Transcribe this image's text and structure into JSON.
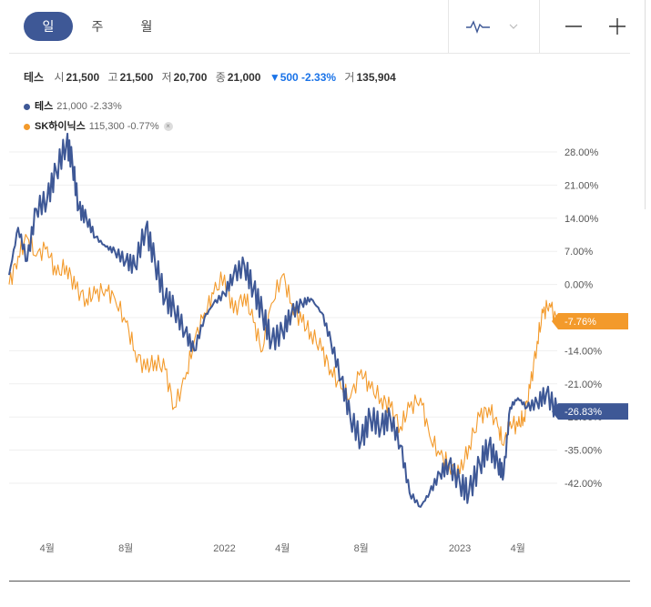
{
  "tabs": [
    {
      "label": "일",
      "active": true
    },
    {
      "label": "주",
      "active": false
    },
    {
      "label": "월",
      "active": false
    }
  ],
  "controls": {
    "chart_type_icon": "line-chart-icon",
    "dropdown_icon": "chevron-down-icon",
    "zoom_out_icon": "minus-icon",
    "zoom_in_icon": "plus-icon"
  },
  "quote": {
    "name": "테스",
    "open_label": "시",
    "open": "21,500",
    "high_label": "고",
    "high": "21,500",
    "low_label": "저",
    "low": "20,700",
    "close_label": "종",
    "close": "21,000",
    "change": "▼500 -2.33%",
    "volume_label": "거",
    "volume": "135,904"
  },
  "legend": [
    {
      "name": "테스",
      "value": "21,000 -2.33%",
      "color": "#3e5896"
    },
    {
      "name": "SK하이닉스",
      "value": "115,300 -0.77%",
      "color": "#f39a2b",
      "removable": true
    }
  ],
  "chart_data": {
    "type": "line",
    "y_unit": "%",
    "yticks": [
      "28.00%",
      "21.00%",
      "14.00%",
      "7.00%",
      "0.00%",
      "-7.00%",
      "-14.00%",
      "-21.00%",
      "-28.00%",
      "-35.00%",
      "-42.00%"
    ],
    "ylim": [
      -48,
      30
    ],
    "xticks": [
      "4월",
      "8월",
      "2022",
      "4월",
      "8월",
      "2023",
      "4월"
    ],
    "x_range": [
      "2021-02",
      "2023-06"
    ],
    "grid": true,
    "series": [
      {
        "name": "테스",
        "color": "#3e5896",
        "last_label": "-26.83%",
        "points": [
          [
            "2021-02-01",
            2
          ],
          [
            "2021-02-15",
            12
          ],
          [
            "2021-03-01",
            5
          ],
          [
            "2021-03-15",
            16
          ],
          [
            "2021-04-01",
            18
          ],
          [
            "2021-04-15",
            24
          ],
          [
            "2021-05-01",
            30
          ],
          [
            "2021-05-10",
            26
          ],
          [
            "2021-05-20",
            16
          ],
          [
            "2021-06-01",
            14
          ],
          [
            "2021-06-15",
            10
          ],
          [
            "2021-07-01",
            8
          ],
          [
            "2021-07-15",
            7
          ],
          [
            "2021-08-01",
            5
          ],
          [
            "2021-08-15",
            4
          ],
          [
            "2021-09-01",
            12
          ],
          [
            "2021-09-15",
            5
          ],
          [
            "2021-10-01",
            -3
          ],
          [
            "2021-10-15",
            -5
          ],
          [
            "2021-11-01",
            -10
          ],
          [
            "2021-11-15",
            -14
          ],
          [
            "2021-12-01",
            -7
          ],
          [
            "2021-12-15",
            -4
          ],
          [
            "2022-01-01",
            -2
          ],
          [
            "2022-01-15",
            2
          ],
          [
            "2022-02-01",
            4
          ],
          [
            "2022-02-15",
            -1
          ],
          [
            "2022-03-01",
            -6
          ],
          [
            "2022-03-15",
            -12
          ],
          [
            "2022-04-01",
            -10
          ],
          [
            "2022-04-15",
            -6
          ],
          [
            "2022-05-01",
            -4
          ],
          [
            "2022-05-15",
            -3
          ],
          [
            "2022-06-01",
            -6
          ],
          [
            "2022-06-15",
            -12
          ],
          [
            "2022-07-01",
            -20
          ],
          [
            "2022-07-15",
            -28
          ],
          [
            "2022-08-01",
            -33
          ],
          [
            "2022-08-15",
            -28
          ],
          [
            "2022-09-01",
            -30
          ],
          [
            "2022-09-15",
            -28
          ],
          [
            "2022-10-01",
            -34
          ],
          [
            "2022-10-15",
            -44
          ],
          [
            "2022-11-01",
            -47
          ],
          [
            "2022-11-15",
            -44
          ],
          [
            "2022-12-01",
            -40
          ],
          [
            "2022-12-15",
            -38
          ],
          [
            "2023-01-01",
            -42
          ],
          [
            "2023-01-15",
            -44
          ],
          [
            "2023-02-01",
            -38
          ],
          [
            "2023-02-15",
            -34
          ],
          [
            "2023-03-01",
            -38
          ],
          [
            "2023-03-10",
            -40
          ],
          [
            "2023-03-20",
            -26
          ],
          [
            "2023-04-01",
            -24
          ],
          [
            "2023-04-15",
            -26
          ],
          [
            "2023-05-01",
            -25
          ],
          [
            "2023-05-15",
            -23
          ],
          [
            "2023-06-01",
            -27
          ]
        ]
      },
      {
        "name": "SK하이닉스",
        "color": "#f39a2b",
        "last_label": "-7.76%",
        "points": [
          [
            "2021-02-01",
            0
          ],
          [
            "2021-02-15",
            6
          ],
          [
            "2021-03-01",
            10
          ],
          [
            "2021-03-15",
            6
          ],
          [
            "2021-04-01",
            8
          ],
          [
            "2021-04-15",
            2
          ],
          [
            "2021-05-01",
            4
          ],
          [
            "2021-05-15",
            -1
          ],
          [
            "2021-06-01",
            -3
          ],
          [
            "2021-06-15",
            -2
          ],
          [
            "2021-07-01",
            -1
          ],
          [
            "2021-07-15",
            -3
          ],
          [
            "2021-08-01",
            -8
          ],
          [
            "2021-08-15",
            -14
          ],
          [
            "2021-09-01",
            -18
          ],
          [
            "2021-09-15",
            -16
          ],
          [
            "2021-10-01",
            -18
          ],
          [
            "2021-10-15",
            -26
          ],
          [
            "2021-11-01",
            -20
          ],
          [
            "2021-11-15",
            -12
          ],
          [
            "2021-12-01",
            -6
          ],
          [
            "2021-12-15",
            -2
          ],
          [
            "2022-01-01",
            2
          ],
          [
            "2022-01-15",
            -6
          ],
          [
            "2022-02-01",
            -2
          ],
          [
            "2022-02-15",
            -8
          ],
          [
            "2022-03-01",
            -14
          ],
          [
            "2022-03-15",
            -4
          ],
          [
            "2022-04-01",
            2
          ],
          [
            "2022-04-15",
            -4
          ],
          [
            "2022-05-01",
            -8
          ],
          [
            "2022-05-15",
            -10
          ],
          [
            "2022-06-01",
            -14
          ],
          [
            "2022-06-15",
            -18
          ],
          [
            "2022-07-01",
            -22
          ],
          [
            "2022-07-15",
            -24
          ],
          [
            "2022-08-01",
            -18
          ],
          [
            "2022-08-15",
            -22
          ],
          [
            "2022-09-01",
            -24
          ],
          [
            "2022-09-15",
            -26
          ],
          [
            "2022-10-01",
            -30
          ],
          [
            "2022-10-15",
            -26
          ],
          [
            "2022-11-01",
            -24
          ],
          [
            "2022-11-15",
            -32
          ],
          [
            "2022-12-01",
            -36
          ],
          [
            "2022-12-15",
            -38
          ],
          [
            "2023-01-01",
            -40
          ],
          [
            "2023-01-15",
            -34
          ],
          [
            "2023-02-01",
            -28
          ],
          [
            "2023-02-15",
            -26
          ],
          [
            "2023-03-01",
            -30
          ],
          [
            "2023-03-10",
            -34
          ],
          [
            "2023-03-20",
            -29
          ],
          [
            "2023-04-01",
            -30
          ],
          [
            "2023-04-10",
            -28
          ],
          [
            "2023-04-20",
            -22
          ],
          [
            "2023-05-01",
            -12
          ],
          [
            "2023-05-10",
            -6
          ],
          [
            "2023-05-20",
            -4
          ],
          [
            "2023-06-01",
            -8
          ]
        ]
      }
    ]
  }
}
